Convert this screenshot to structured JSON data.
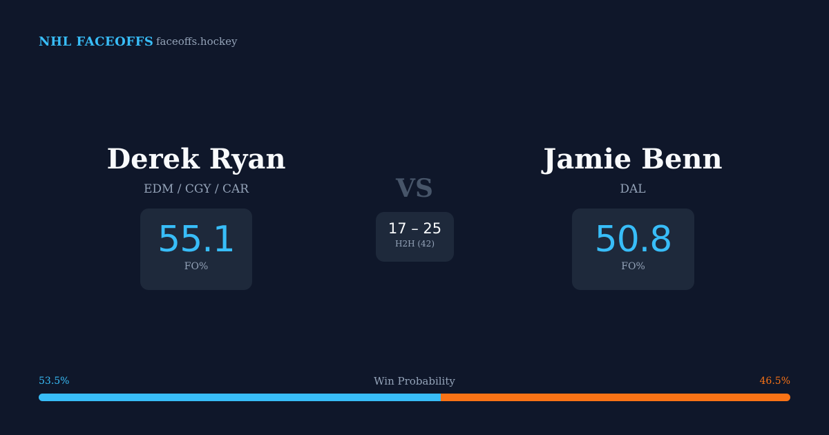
{
  "header": {
    "brand": "NHL FACEOFFS",
    "site": "faceoffs.hockey"
  },
  "players": [
    {
      "name": "Derek Ryan",
      "teams": "EDM / CGY / CAR",
      "fo_value": 55.1,
      "fo_label": "FO%"
    },
    {
      "name": "Jamie Benn",
      "teams": "DAL",
      "fo_value": 50.8,
      "fo_label": "FO%"
    }
  ],
  "versus": {
    "label": "VS",
    "h2h_score": "17 – 25",
    "h2h_label": "H2H (42)"
  },
  "win_probability": {
    "label": "Win Probability",
    "values": [
      53.5,
      46.5
    ],
    "value_labels": [
      "53.5%",
      "46.5%"
    ],
    "colors": [
      "#38bdf8",
      "#f97316"
    ]
  }
}
